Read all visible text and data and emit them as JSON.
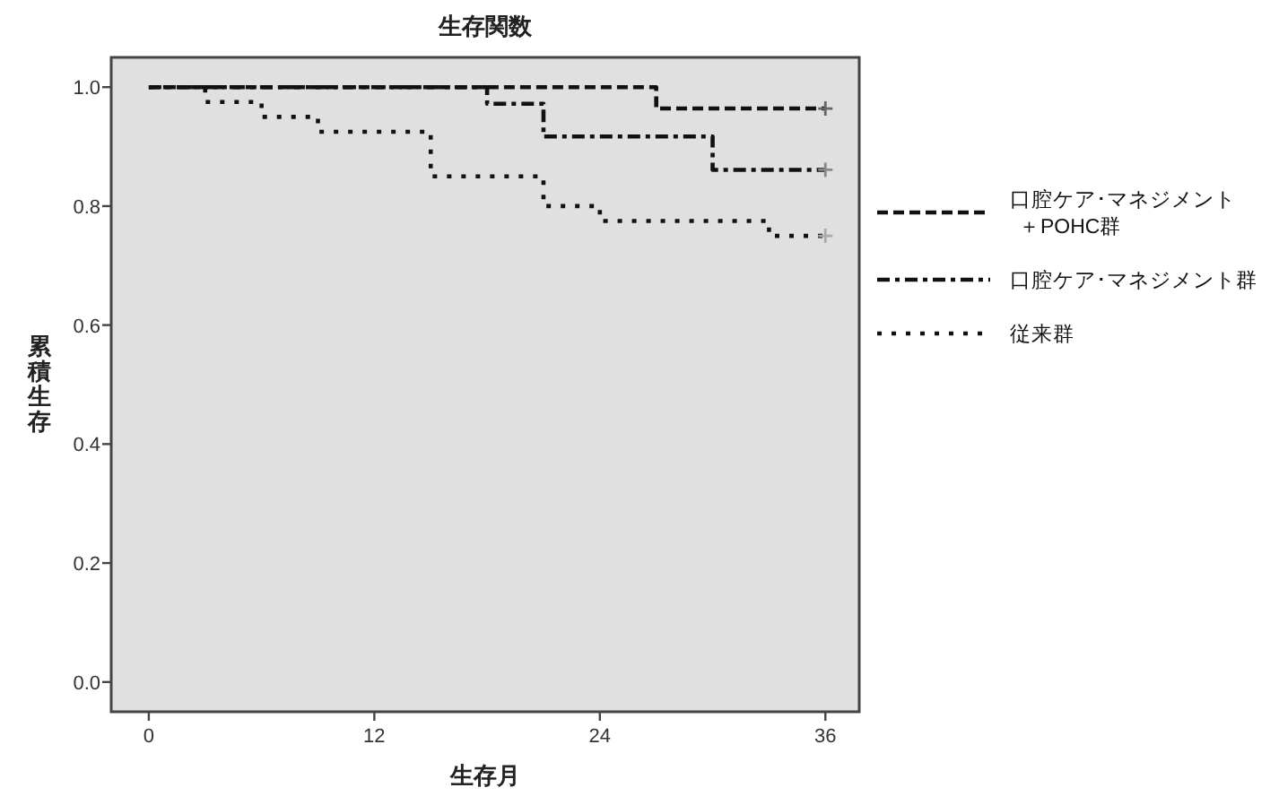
{
  "chart_data": {
    "type": "step",
    "title": "生存関数",
    "xlabel": "生存月",
    "ylabel": "累積生存",
    "xlim": [
      -2,
      37.8
    ],
    "xticks": [
      0,
      12,
      24,
      36
    ],
    "ylim": [
      -0.05,
      1.05
    ],
    "yticks": [
      {
        "value": 0,
        "label": "0.0"
      },
      0.2,
      0.4,
      0.6,
      0.8,
      {
        "value": 1,
        "label": "1.0"
      }
    ],
    "legend": "right",
    "series": [
      {
        "name": "口腔ケア･マネジメント＋POHC群",
        "color": "#111111",
        "line_style": "dashed",
        "x": [
          0,
          27,
          36
        ],
        "values": [
          1.0,
          0.964,
          0.964
        ]
      },
      {
        "name": "口腔ケア･マネジメント群",
        "color": "#111111",
        "line_style": "dashdot",
        "x": [
          0,
          18,
          21,
          30,
          36
        ],
        "values": [
          1.0,
          0.972,
          0.917,
          0.861,
          0.861
        ]
      },
      {
        "name": "従来群",
        "color": "#111111",
        "line_style": "dotted",
        "x": [
          0,
          3,
          6,
          9,
          15,
          21,
          24,
          33,
          36
        ],
        "values": [
          1.0,
          0.975,
          0.95,
          0.925,
          0.85,
          0.8,
          0.775,
          0.75,
          0.75
        ]
      },
      {
        "type": "scatter",
        "marker": "cross",
        "color": "#666666",
        "x": [
          36
        ],
        "values": [
          0.964
        ]
      },
      {
        "type": "scatter",
        "marker": "cross",
        "color": "#888888",
        "x": [
          36
        ],
        "values": [
          0.861
        ]
      },
      {
        "type": "scatter",
        "marker": "cross",
        "color": "#aaaaaa",
        "x": [
          36
        ],
        "values": [
          0.75
        ]
      }
    ]
  }
}
